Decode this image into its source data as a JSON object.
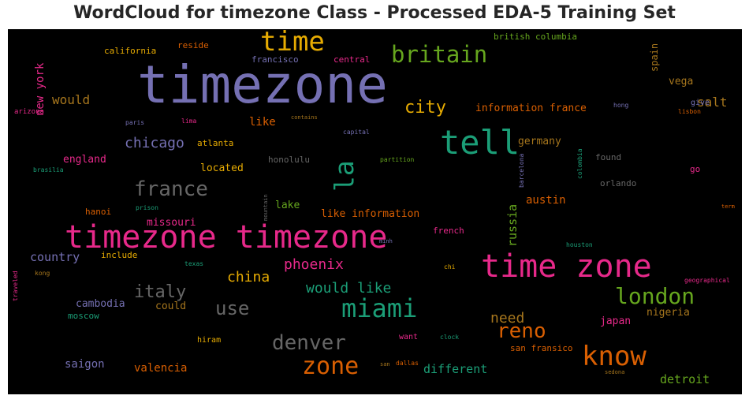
{
  "title": "WordCloud for timezone Class - Processed EDA-5 Training Set",
  "colors": {
    "purple": "#7570b3",
    "green": "#1b9e77",
    "orange": "#d95f02",
    "pink": "#e7298a",
    "olive": "#66a61e",
    "gold": "#e6ab02",
    "brown": "#a6761d",
    "gray": "#666666"
  },
  "words": {
    "timezone": "timezone",
    "timezone_timezone": "timezone timezone",
    "time_zone": "time zone",
    "tell": "tell",
    "time": "time",
    "britain": "britain",
    "know": "know",
    "london": "london",
    "miami": "miami",
    "la": "la",
    "france": "france",
    "denver": "denver",
    "zone": "zone",
    "reno": "reno",
    "italy": "italy",
    "use": "use",
    "city": "city",
    "chicago": "chicago",
    "phoenix": "phoenix",
    "china": "china",
    "would_like": "would like",
    "need": "need",
    "country": "country",
    "would": "would",
    "salt": "salt",
    "detroit": "detroit",
    "different": "different",
    "valencia": "valencia",
    "saigon": "saigon",
    "austin": "austin",
    "russia": "russia",
    "new_york": "new york",
    "information_france": "information france",
    "like": "like",
    "germany": "germany",
    "england": "england",
    "located": "located",
    "missouri": "missouri",
    "like_information": "like information",
    "cambodia": "cambodia",
    "could": "could",
    "lake": "lake",
    "vega": "vega",
    "spain": "spain",
    "japan": "japan",
    "nigeria": "nigeria",
    "san_fransico": "san fransico",
    "moscow": "moscow",
    "include": "include",
    "hanoi": "hanoi",
    "french": "french",
    "california": "california",
    "reside": "reside",
    "british_columbia": "british columbia",
    "francisco": "francisco",
    "central": "central",
    "atlanta": "atlanta",
    "honolulu": "honolulu",
    "found": "found",
    "orlando": "orlando",
    "go": "go",
    "give": "give",
    "hong": "hong",
    "lisbon": "lisbon",
    "arizona": "arizona",
    "paris": "paris",
    "lima": "lima",
    "contains": "contains",
    "capital": "capital",
    "brasilia": "brasilia",
    "partition": "partition",
    "prison": "prison",
    "mountain": "mountain",
    "barcelona": "barcelona",
    "colombia": "colombia",
    "term": "term",
    "minh": "minh",
    "houston": "houston",
    "texas": "texas",
    "chi": "chi",
    "kong": "kong",
    "traveled": "traveled",
    "geographical": "geographical",
    "hiram": "hiram",
    "want": "want",
    "clock": "clock",
    "san": "san",
    "dallas": "dallas",
    "sedona": "sedona"
  }
}
